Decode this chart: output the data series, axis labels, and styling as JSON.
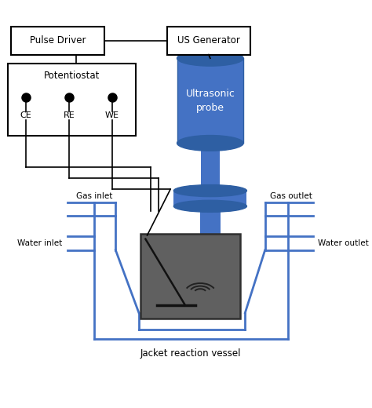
{
  "background_color": "#ffffff",
  "blue": "#4472C4",
  "blue_dark": "#2E5FA3",
  "black": "#000000",
  "vessel_gray": "#606060",
  "vessel_edge": "#303030",
  "figsize": [
    4.74,
    5.2
  ],
  "dpi": 100,
  "xlim": [
    0,
    10
  ],
  "ylim": [
    0,
    11
  ]
}
